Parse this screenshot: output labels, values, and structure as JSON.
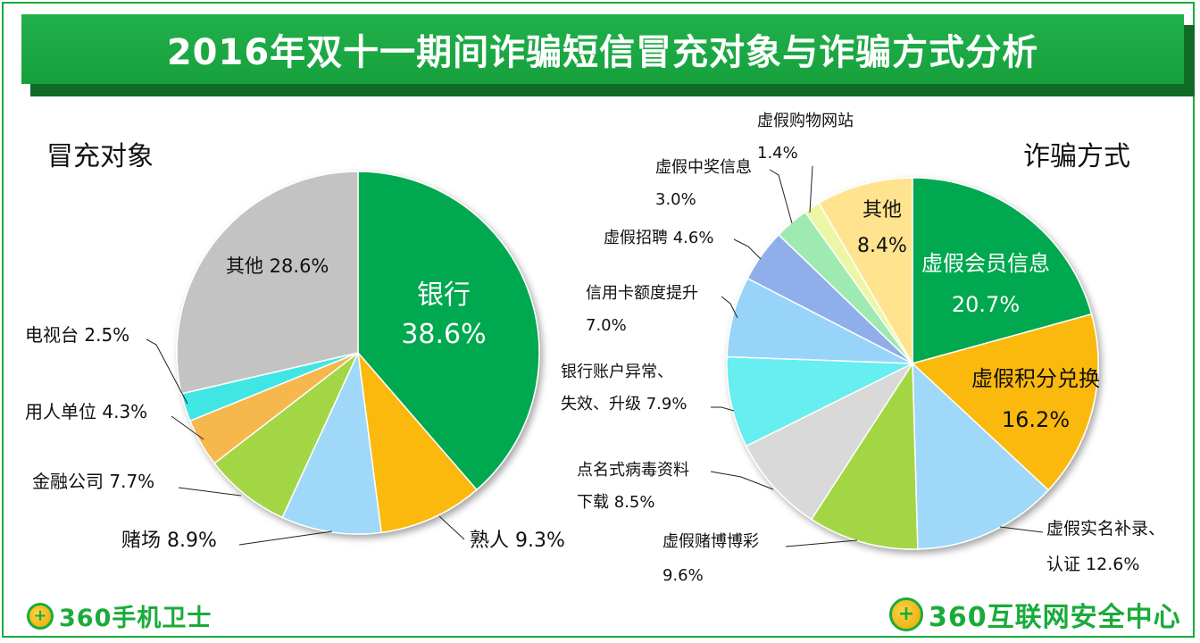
{
  "header": {
    "title": "2016年双十一期间诈骗短信冒充对象与诈骗方式分析"
  },
  "logos": {
    "left": "360手机卫士",
    "right": "360互联网安全中心"
  },
  "colors": {
    "brand_green": "#1aab3a"
  },
  "chart_data": [
    {
      "type": "pie",
      "title": "冒充对象",
      "slices": [
        {
          "name": "银行",
          "value": 38.6,
          "label": [
            "银行",
            "38.6%"
          ],
          "color": "#00a84f"
        },
        {
          "name": "熟人",
          "value": 9.3,
          "label": [
            "熟人 9.3%"
          ],
          "color": "#fbb90f"
        },
        {
          "name": "赌场",
          "value": 8.9,
          "label": [
            "赌场 8.9%"
          ],
          "color": "#9fd8f8"
        },
        {
          "name": "金融公司",
          "value": 7.7,
          "label": [
            "金融公司 7.7%"
          ],
          "color": "#a3d645"
        },
        {
          "name": "用人单位",
          "value": 4.3,
          "label": [
            "用人单位 4.3%"
          ],
          "color": "#f6b74e"
        },
        {
          "name": "电视台",
          "value": 2.5,
          "label": [
            "电视台 2.5%"
          ],
          "color": "#3fe6e4"
        },
        {
          "name": "其他",
          "value": 28.6,
          "label": [
            "其他 28.6%"
          ],
          "color": "#c3c3c3"
        }
      ]
    },
    {
      "type": "pie",
      "title": "诈骗方式",
      "slices": [
        {
          "name": "虚假会员信息",
          "value": 20.7,
          "label": [
            "虚假会员信息",
            "20.7%"
          ],
          "color": "#00a84f"
        },
        {
          "name": "虚假积分兑换",
          "value": 16.2,
          "label": [
            "虚假积分兑换",
            "16.2%"
          ],
          "color": "#fbb90f"
        },
        {
          "name": "虚假实名补录、认证",
          "value": 12.6,
          "label": [
            "虚假实名补录、",
            "认证 12.6%"
          ],
          "color": "#9fd8f8"
        },
        {
          "name": "虚假赌博博彩",
          "value": 9.6,
          "label": [
            "虚假赌博博彩",
            "9.6%"
          ],
          "color": "#a3d645"
        },
        {
          "name": "点名式病毒资料下载",
          "value": 8.5,
          "label": [
            "点名式病毒资料",
            "下载 8.5%"
          ],
          "color": "#d9d9d9"
        },
        {
          "name": "银行账户异常、失效、升级",
          "value": 7.9,
          "label": [
            "银行账户异常、",
            "失效、升级 7.9%"
          ],
          "color": "#66eef0"
        },
        {
          "name": "信用卡额度提升",
          "value": 7.0,
          "label": [
            "信用卡额度提升",
            "7.0%"
          ],
          "color": "#98d4fa"
        },
        {
          "name": "虚假招聘",
          "value": 4.6,
          "label": [
            "虚假招聘 4.6%"
          ],
          "color": "#8faeea"
        },
        {
          "name": "虚假中奖信息",
          "value": 3.0,
          "label": [
            "虚假中奖信息",
            "3.0%"
          ],
          "color": "#9feab0"
        },
        {
          "name": "虚假购物网站",
          "value": 1.4,
          "label": [
            "虚假购物网站",
            "1.4%"
          ],
          "color": "#ecf7a5"
        },
        {
          "name": "其他",
          "value": 8.4,
          "label": [
            "其他",
            "8.4%"
          ],
          "color": "#ffe38f"
        }
      ]
    }
  ]
}
